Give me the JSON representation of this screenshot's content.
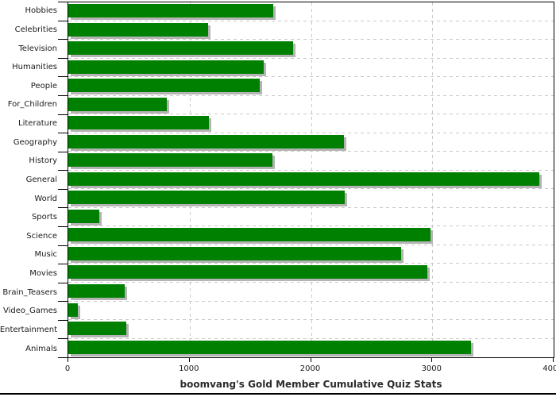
{
  "chart_data": {
    "type": "bar",
    "orientation": "horizontal",
    "title": "boomvang's Gold Member Cumulative Quiz Stats",
    "categories": [
      "Hobbies",
      "Celebrities",
      "Television",
      "Humanities",
      "People",
      "For_Children",
      "Literature",
      "Geography",
      "History",
      "General",
      "World",
      "Sports",
      "Science",
      "Music",
      "Movies",
      "Brain_Teasers",
      "Video_Games",
      "Entertainment",
      "Animals"
    ],
    "values": [
      1690,
      1150,
      1850,
      1610,
      1580,
      810,
      1160,
      2270,
      1685,
      3880,
      2280,
      255,
      2985,
      2740,
      2960,
      465,
      80,
      475,
      3320
    ],
    "xlabel": "",
    "ylabel": "",
    "xlim": [
      0,
      4000
    ],
    "x_ticks": [
      0,
      1000,
      2000,
      3000,
      4000
    ],
    "grid": "dashed horizontal and vertical",
    "legend_position": "none",
    "colors": {
      "bar": "#008000",
      "bar_shadow": "#b4b4b4",
      "grid": "#c9c9c9",
      "axis": "#000000",
      "text": "#1a1a1a",
      "background": "#ffffff"
    }
  }
}
